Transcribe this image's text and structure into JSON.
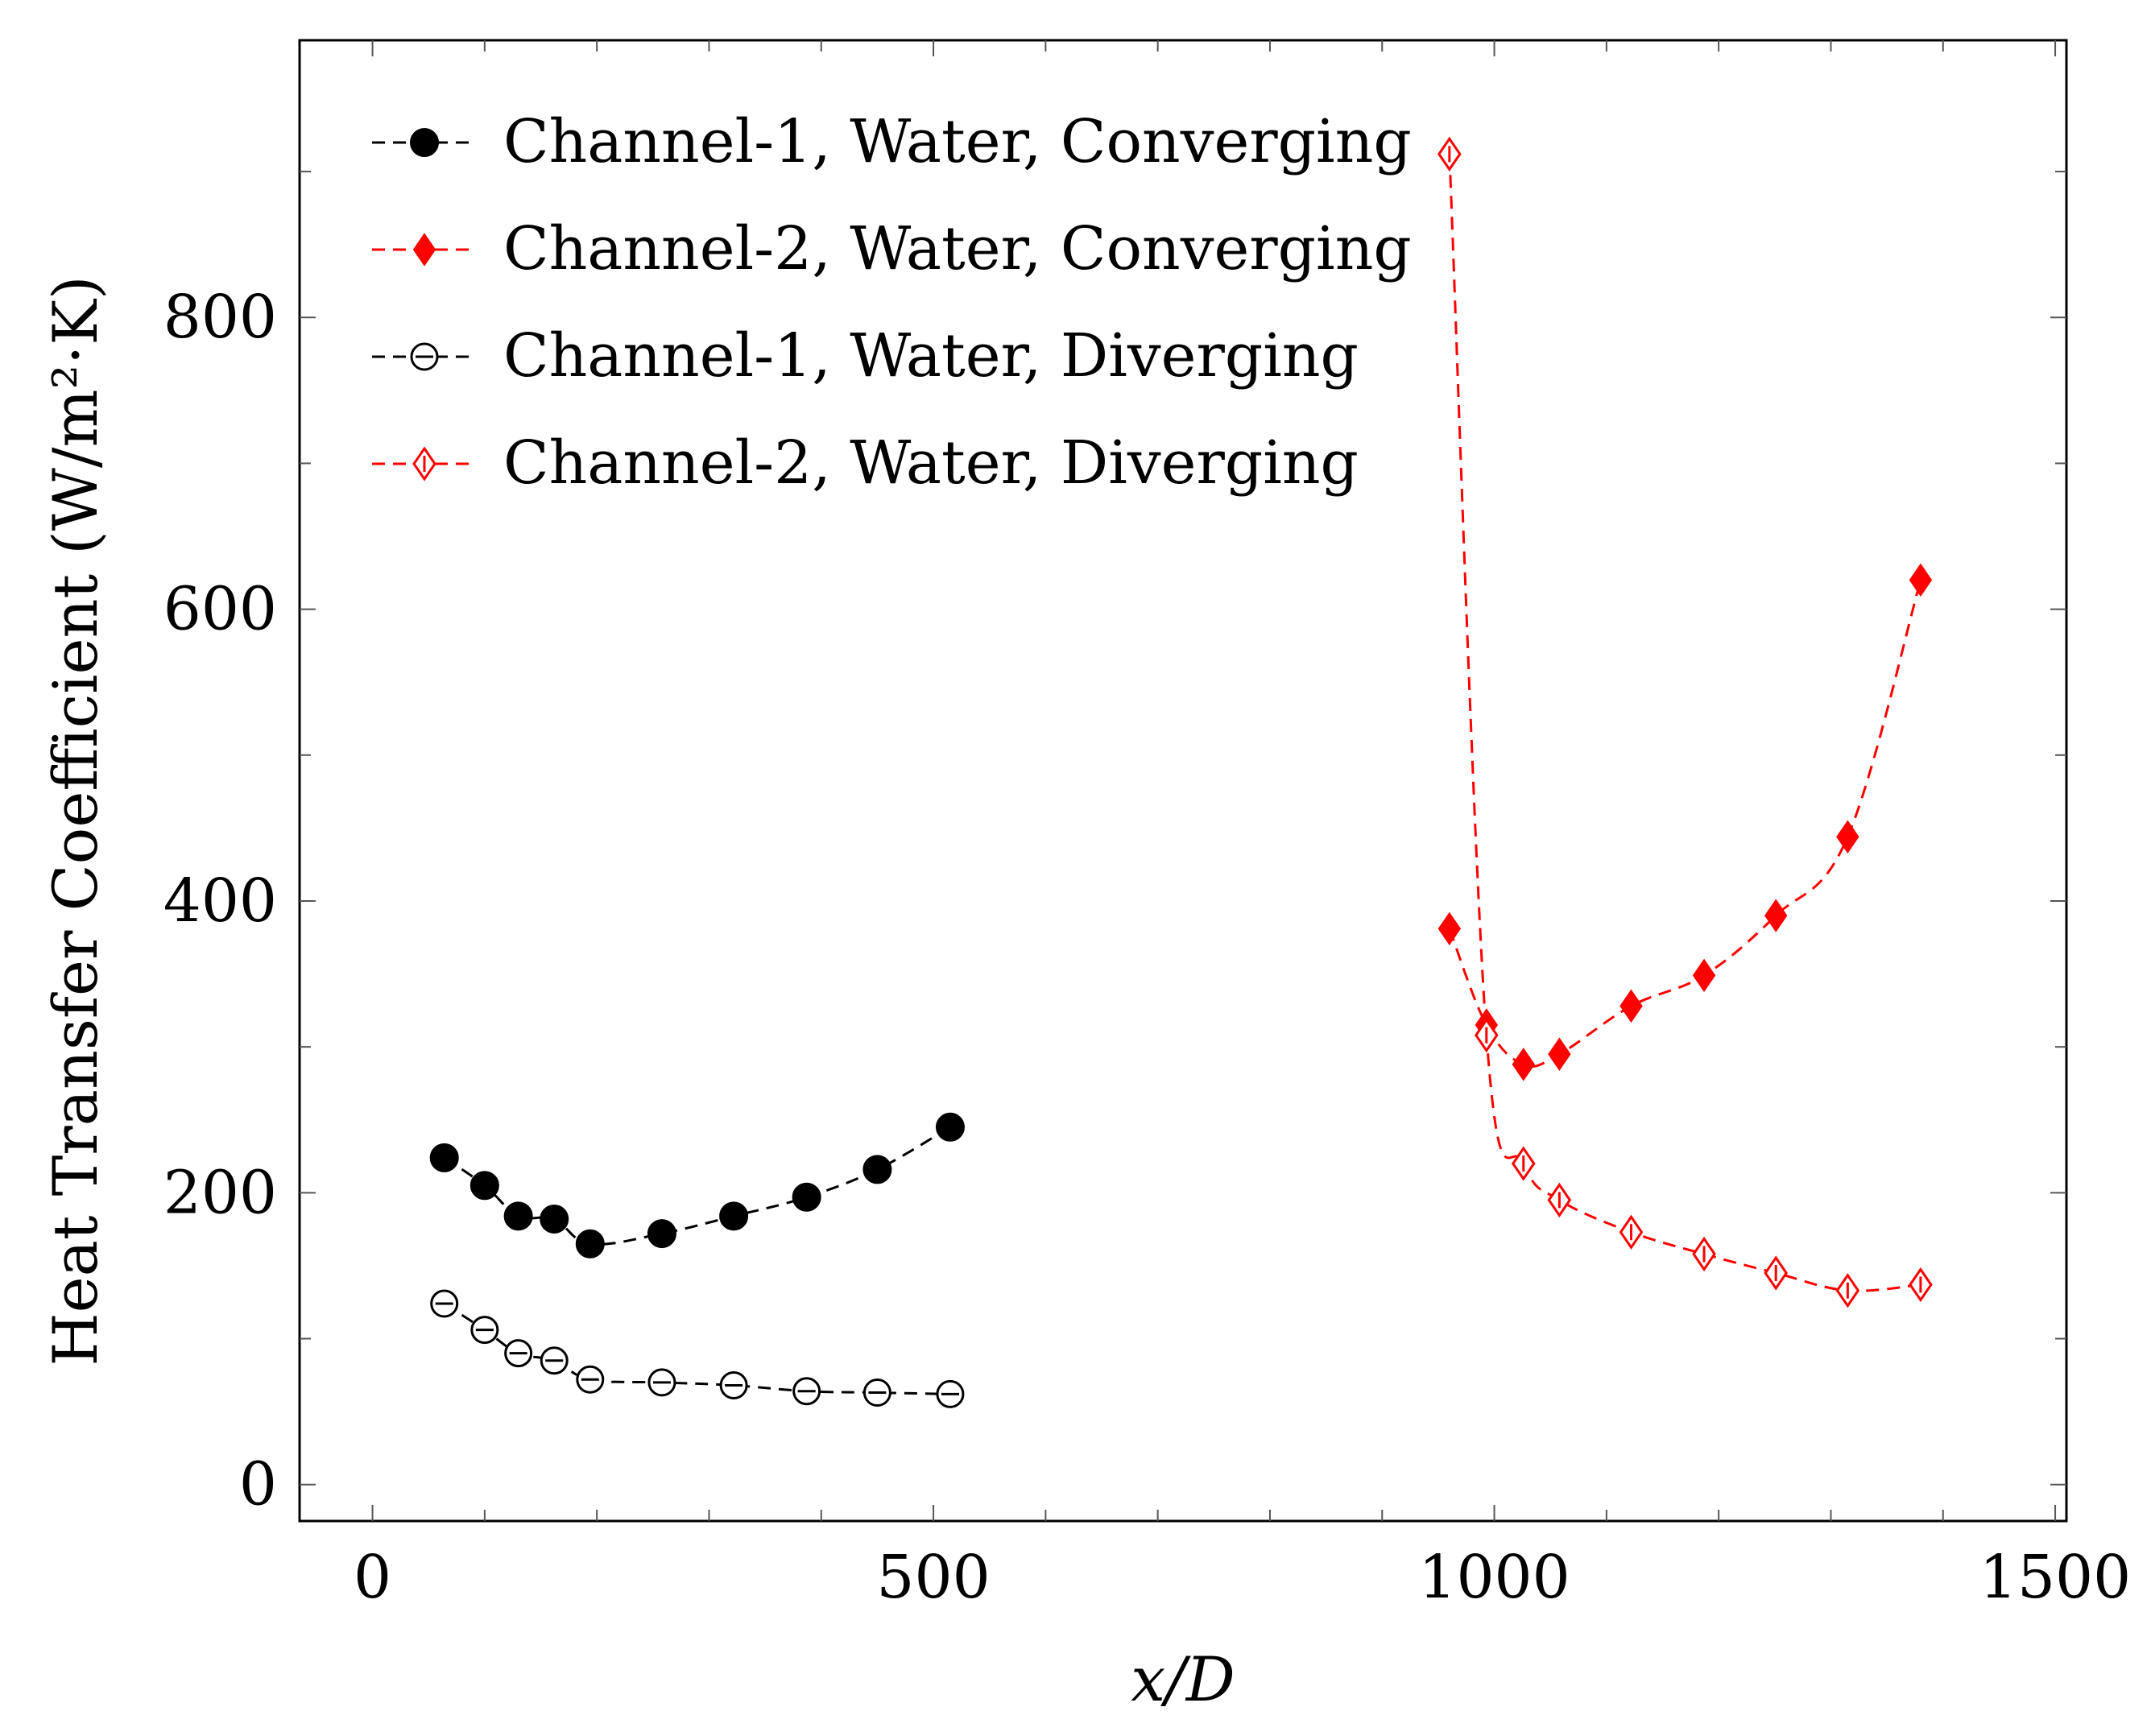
{
  "chart_data": {
    "type": "line",
    "title": "",
    "xlabel": "x/D",
    "ylabel": "Heat Transfer Coefficient (W/m²·K)",
    "xlim": [
      -65,
      1510
    ],
    "ylim": [
      -25,
      990
    ],
    "xticks": [
      0,
      500,
      1000,
      1500
    ],
    "xtick_labels": [
      "0",
      "500",
      "1000",
      "1500"
    ],
    "yticks": [
      0,
      200,
      400,
      600,
      800
    ],
    "ytick_labels": [
      "0",
      "200",
      "400",
      "600",
      "800"
    ],
    "grid": false,
    "legend_position": "top-left",
    "series": [
      {
        "name": "Channel-1, Water, Converging",
        "color": "#000000",
        "marker": "filled-circle",
        "x": [
          64,
          100,
          130,
          162,
          194,
          258,
          322,
          387,
          450,
          515
        ],
        "y": [
          224,
          205,
          184,
          182,
          165,
          172,
          184,
          197,
          216,
          245
        ]
      },
      {
        "name": "Channel-2, Water, Converging",
        "color": "#ff0000",
        "marker": "filled-diamond",
        "x": [
          960,
          993,
          1026,
          1058,
          1122,
          1187,
          1251,
          1315,
          1380
        ],
        "y": [
          381,
          315,
          288,
          295,
          328,
          349,
          390,
          444,
          620
        ]
      },
      {
        "name": "Channel-1, Water, Diverging",
        "color": "#000000",
        "marker": "open-circle",
        "x": [
          64,
          100,
          130,
          162,
          194,
          258,
          322,
          387,
          450,
          515
        ],
        "y": [
          124,
          106,
          90,
          85,
          72,
          70,
          68,
          64,
          63,
          62
        ]
      },
      {
        "name": "Channel-2, Water, Diverging",
        "color": "#ff0000",
        "marker": "open-diamond",
        "x": [
          960,
          993,
          1026,
          1058,
          1122,
          1187,
          1251,
          1315,
          1380
        ],
        "y": [
          912,
          308,
          220,
          195,
          173,
          158,
          145,
          133,
          137
        ]
      }
    ]
  }
}
